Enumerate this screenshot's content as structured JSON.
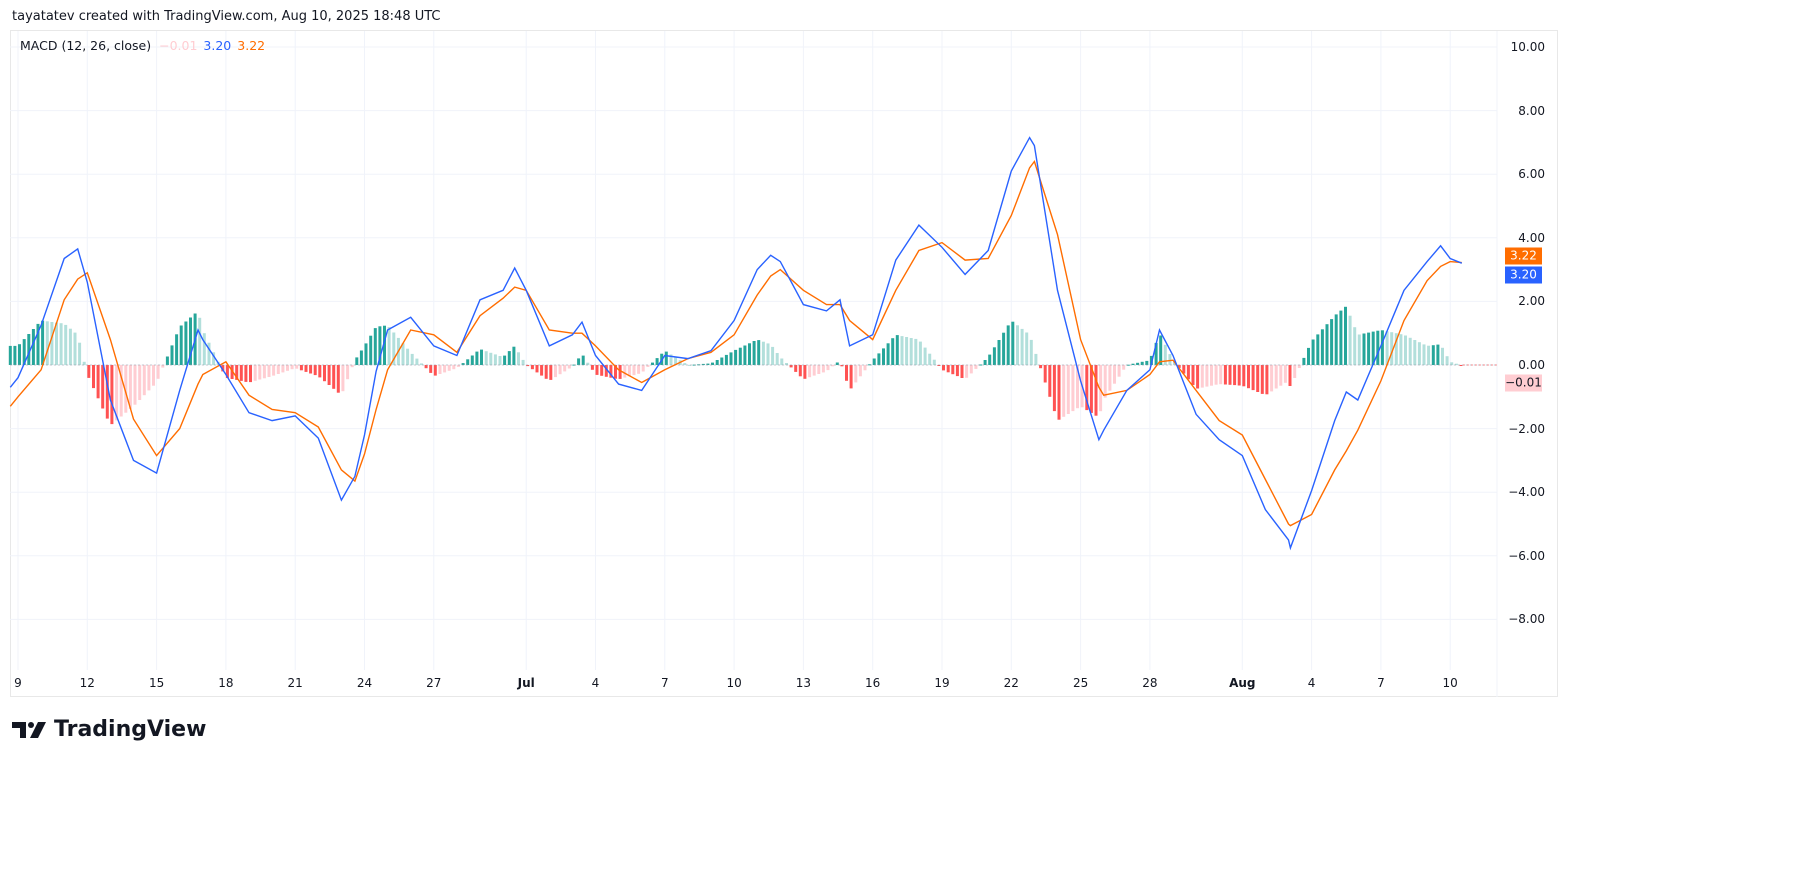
{
  "header": {
    "attribution": "tayatatev created with TradingView.com, Aug 10, 2025 18:48 UTC"
  },
  "legend": {
    "indicator": "MACD (12, 26, close)",
    "histogram_value": "−0.01",
    "macd_value": "3.20",
    "signal_value": "3.22"
  },
  "price_tags": {
    "signal": "3.22",
    "macd": "3.20",
    "histogram": "−0.01"
  },
  "branding": {
    "logo_text": "TradingView"
  },
  "colors": {
    "macd": "#2962ff",
    "signal": "#ff6d00",
    "hist_pos_rising": "#26a69a",
    "hist_pos_falling": "#b2dfdb",
    "hist_neg_falling": "#ff5252",
    "hist_neg_rising": "#ffcdd2"
  },
  "chart_data": {
    "type": "line",
    "title": "MACD (12, 26, close)",
    "ylim": [
      -9.5,
      10.5
    ],
    "grid": true,
    "y_ticks": [
      "10.00",
      "8.00",
      "6.00",
      "4.00",
      "2.00",
      "0.00",
      "−2.00",
      "−4.00",
      "−6.00",
      "−8.00"
    ],
    "y_tick_values": [
      10,
      8,
      6,
      4,
      2,
      0,
      -2,
      -4,
      -6,
      -8
    ],
    "x_ticks": [
      {
        "label": "9",
        "date": "2025-06-09"
      },
      {
        "label": "12",
        "date": "2025-06-12"
      },
      {
        "label": "15",
        "date": "2025-06-15"
      },
      {
        "label": "18",
        "date": "2025-06-18"
      },
      {
        "label": "21",
        "date": "2025-06-21"
      },
      {
        "label": "24",
        "date": "2025-06-24"
      },
      {
        "label": "27",
        "date": "2025-06-27"
      },
      {
        "label": "Jul",
        "date": "2025-07-01",
        "bold": true
      },
      {
        "label": "4",
        "date": "2025-07-04"
      },
      {
        "label": "7",
        "date": "2025-07-07"
      },
      {
        "label": "10",
        "date": "2025-07-10"
      },
      {
        "label": "13",
        "date": "2025-07-13"
      },
      {
        "label": "16",
        "date": "2025-07-16"
      },
      {
        "label": "19",
        "date": "2025-07-19"
      },
      {
        "label": "22",
        "date": "2025-07-22"
      },
      {
        "label": "25",
        "date": "2025-07-25"
      },
      {
        "label": "28",
        "date": "2025-07-28"
      },
      {
        "label": "Aug",
        "date": "2025-08-01",
        "bold": true
      },
      {
        "label": "4",
        "date": "2025-08-04"
      },
      {
        "label": "7",
        "date": "2025-08-07"
      },
      {
        "label": "10",
        "date": "2025-08-10"
      }
    ],
    "x": [
      "2025-06-08T16:00",
      "2025-06-09T00:00",
      "2025-06-10T00:00",
      "2025-06-11T00:00",
      "2025-06-11T14:00",
      "2025-06-12T00:00",
      "2025-06-13T00:00",
      "2025-06-14T00:00",
      "2025-06-15T00:00",
      "2025-06-16T00:00",
      "2025-06-16T19:00",
      "2025-06-17T00:00",
      "2025-06-18T00:00",
      "2025-06-19T00:00",
      "2025-06-20T00:00",
      "2025-06-21T00:00",
      "2025-06-22T00:00",
      "2025-06-23T00:00",
      "2025-06-23T14:00",
      "2025-06-24T00:00",
      "2025-06-24T12:00",
      "2025-06-25T00:00",
      "2025-06-26T00:00",
      "2025-06-27T00:00",
      "2025-06-28T00:00",
      "2025-06-29T00:00",
      "2025-06-30T00:00",
      "2025-06-30T12:00",
      "2025-07-01T00:00",
      "2025-07-02T00:00",
      "2025-07-03T00:00",
      "2025-07-03T10:00",
      "2025-07-04T00:00",
      "2025-07-05T00:00",
      "2025-07-06T00:00",
      "2025-07-07T00:00",
      "2025-07-08T00:00",
      "2025-07-09T00:00",
      "2025-07-10T00:00",
      "2025-07-11T00:00",
      "2025-07-11T14:00",
      "2025-07-12T00:00",
      "2025-07-13T00:00",
      "2025-07-14T00:00",
      "2025-07-14T14:00",
      "2025-07-15T00:00",
      "2025-07-16T00:00",
      "2025-07-17T00:00",
      "2025-07-18T00:00",
      "2025-07-19T00:00",
      "2025-07-20T00:00",
      "2025-07-21T00:00",
      "2025-07-22T00:00",
      "2025-07-22T19:00",
      "2025-07-23T00:00",
      "2025-07-24T00:00",
      "2025-07-25T00:00",
      "2025-07-25T19:00",
      "2025-07-26T00:00",
      "2025-07-27T00:00",
      "2025-07-28T00:00",
      "2025-07-28T10:00",
      "2025-07-29T00:00",
      "2025-07-30T00:00",
      "2025-07-31T00:00",
      "2025-08-01T00:00",
      "2025-08-02T00:00",
      "2025-08-03T00:00",
      "2025-08-03T02:00",
      "2025-08-04T00:00",
      "2025-08-05T00:00",
      "2025-08-05T12:00",
      "2025-08-06T00:00",
      "2025-08-07T00:00",
      "2025-08-08T00:00",
      "2025-08-09T00:00",
      "2025-08-09T14:00",
      "2025-08-10T00:00",
      "2025-08-10T12:00"
    ],
    "series": [
      {
        "name": "MACD",
        "values": [
          -0.7,
          -0.4,
          1.25,
          3.35,
          3.65,
          2.6,
          -1.1,
          -3.0,
          -3.4,
          -0.8,
          1.1,
          0.8,
          -0.3,
          -1.5,
          -1.75,
          -1.6,
          -2.3,
          -4.25,
          -3.5,
          -2.2,
          -0.2,
          1.1,
          1.5,
          0.6,
          0.3,
          2.05,
          2.35,
          3.05,
          2.35,
          0.6,
          0.95,
          1.35,
          0.3,
          -0.6,
          -0.8,
          0.3,
          0.2,
          0.45,
          1.4,
          3.0,
          3.45,
          3.25,
          1.9,
          1.7,
          2.05,
          0.6,
          0.95,
          3.3,
          4.4,
          3.7,
          2.85,
          3.6,
          6.1,
          7.15,
          6.9,
          2.35,
          -0.5,
          -2.35,
          -2.05,
          -0.8,
          -0.15,
          1.1,
          0.3,
          -1.55,
          -2.35,
          -2.85,
          -4.55,
          -5.5,
          -5.75,
          -3.95,
          -1.75,
          -0.85,
          -1.1,
          0.6,
          2.35,
          3.25,
          3.75,
          3.35,
          3.2
        ]
      },
      {
        "name": "Signal",
        "values": [
          -1.3,
          -1.0,
          -0.15,
          2.05,
          2.7,
          2.9,
          0.8,
          -1.7,
          -2.85,
          -2.0,
          -0.6,
          -0.3,
          0.1,
          -0.95,
          -1.4,
          -1.5,
          -1.95,
          -3.3,
          -3.65,
          -2.8,
          -1.4,
          -0.15,
          1.1,
          0.95,
          0.4,
          1.55,
          2.1,
          2.45,
          2.35,
          1.1,
          1.0,
          1.0,
          0.6,
          -0.15,
          -0.55,
          -0.15,
          0.2,
          0.4,
          0.95,
          2.2,
          2.8,
          3.0,
          2.35,
          1.9,
          1.9,
          1.4,
          0.8,
          2.35,
          3.6,
          3.85,
          3.3,
          3.35,
          4.7,
          6.2,
          6.4,
          4.1,
          0.8,
          -0.7,
          -0.95,
          -0.8,
          -0.3,
          0.1,
          0.15,
          -0.8,
          -1.75,
          -2.2,
          -3.6,
          -5.0,
          -5.05,
          -4.7,
          -3.3,
          -2.7,
          -2.05,
          -0.5,
          1.4,
          2.65,
          3.1,
          3.25,
          3.22
        ]
      },
      {
        "name": "Histogram",
        "values": [
          0.6,
          0.6,
          1.4,
          1.3,
          0.95,
          -0.3,
          -1.9,
          -1.3,
          -0.55,
          1.2,
          1.7,
          1.1,
          -0.4,
          -0.55,
          -0.35,
          -0.1,
          -0.35,
          -0.95,
          0.15,
          0.6,
          1.2,
          1.25,
          0.4,
          -0.35,
          -0.1,
          0.5,
          0.25,
          0.6,
          0,
          -0.5,
          -0.05,
          0.35,
          -0.3,
          -0.45,
          -0.25,
          0.45,
          0,
          0.05,
          0.45,
          0.8,
          0.65,
          0.25,
          -0.45,
          -0.2,
          0.15,
          -0.8,
          0.15,
          0.95,
          0.8,
          -0.15,
          -0.45,
          0.25,
          1.4,
          0.95,
          0.5,
          -1.75,
          -1.3,
          -1.65,
          -1.1,
          0,
          0.15,
          1.0,
          0.15,
          -0.75,
          -0.6,
          -0.65,
          -0.95,
          -0.5,
          -0.7,
          0.75,
          1.55,
          1.85,
          0.95,
          1.1,
          0.95,
          0.6,
          0.65,
          0.1,
          -0.01
        ]
      }
    ]
  }
}
